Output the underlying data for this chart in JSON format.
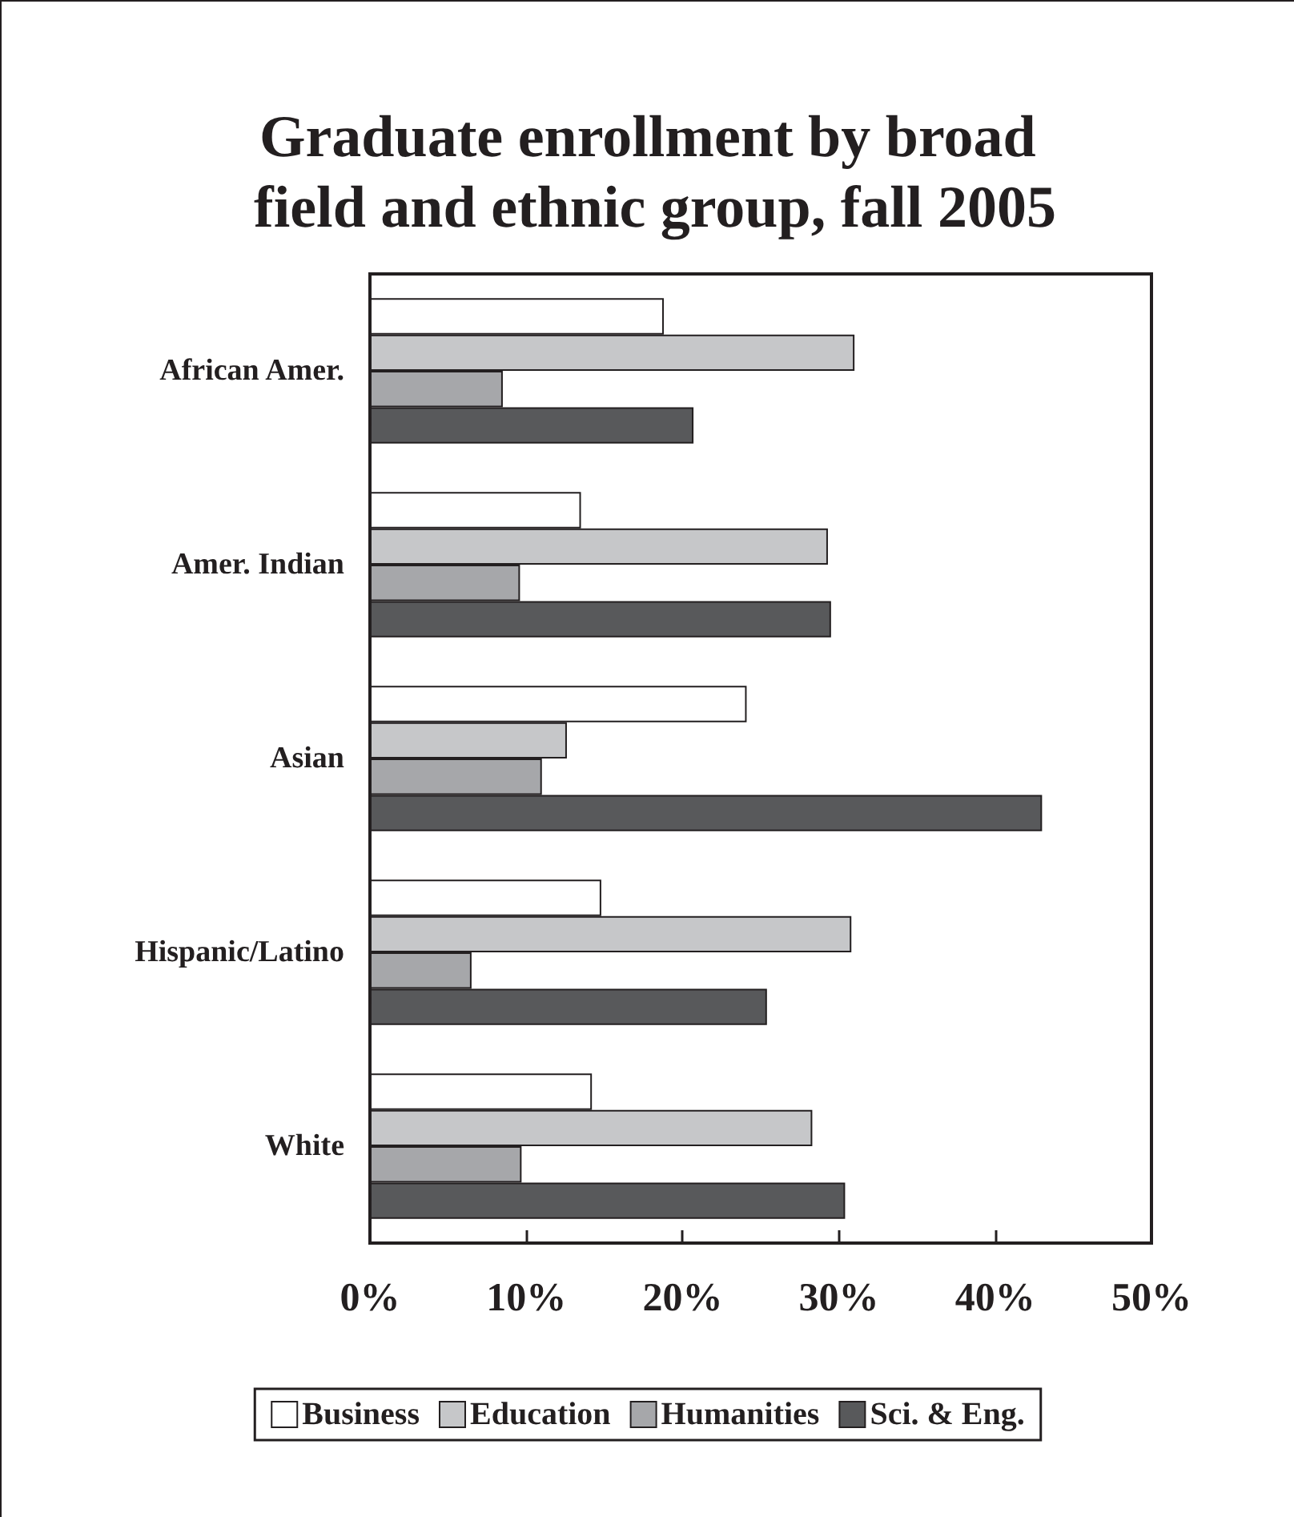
{
  "chart_data": {
    "type": "bar",
    "orientation": "horizontal",
    "title": "Graduate enrollment by broad field and ethnic group, fall 2005",
    "categories": [
      "African Amer.",
      "Amer. Indian",
      "Asian",
      "Hispanic/Latino",
      "White"
    ],
    "series": [
      {
        "name": "Business",
        "color": "#ffffff",
        "values": [
          18.8,
          13.5,
          24.1,
          14.8,
          14.2
        ]
      },
      {
        "name": "Education",
        "color": "#c6c7c9",
        "values": [
          31.0,
          29.3,
          12.6,
          30.8,
          28.3
        ]
      },
      {
        "name": "Humanities",
        "color": "#a6a7aa",
        "values": [
          8.5,
          9.6,
          11.0,
          6.5,
          9.7
        ]
      },
      {
        "name": "Sci. & Eng.",
        "color": "#58595b",
        "values": [
          20.7,
          29.5,
          43.0,
          25.4,
          30.4
        ]
      }
    ],
    "xlim": [
      0,
      50
    ],
    "xticks": [
      {
        "value": 0,
        "label": "0%"
      },
      {
        "value": 10,
        "label": "10%"
      },
      {
        "value": 20,
        "label": "20%"
      },
      {
        "value": 30,
        "label": "30%"
      },
      {
        "value": 40,
        "label": "40%"
      },
      {
        "value": 50,
        "label": "50%"
      }
    ],
    "grid": false,
    "legend": "bottom"
  }
}
